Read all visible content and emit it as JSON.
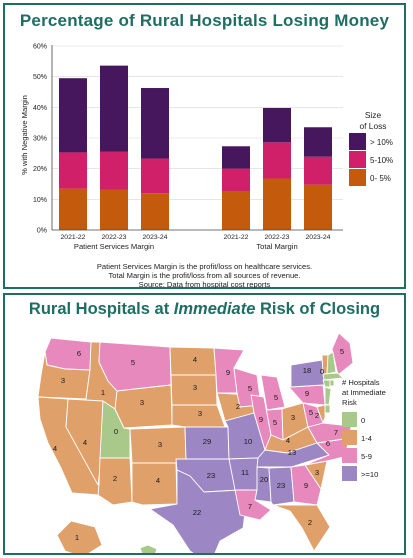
{
  "chart_title": "Percentage of Rural Hospitals Losing Money",
  "map_title": {
    "prefix": "Rural Hospitals at ",
    "emph": "Immediate",
    "suffix": " Risk of Closing"
  },
  "chart_data": [
    {
      "type": "bar",
      "stacked": true,
      "title": "Percentage of Rural Hospitals Losing Money",
      "ylabel": "% with Negative Margin",
      "ylim": [
        0,
        60
      ],
      "yticks": [
        "0%",
        "10%",
        "20%",
        "30%",
        "40%",
        "50%",
        "60%"
      ],
      "grid": true,
      "groups": [
        {
          "label": "Patient Services Margin",
          "categories": [
            "2021-22",
            "2022-23",
            "2023-24"
          ]
        },
        {
          "label": "Total Margin",
          "categories": [
            "2021-22",
            "2022-23",
            "2023-24"
          ]
        }
      ],
      "series": [
        {
          "name": "0- 5%",
          "color": "#c45a0c",
          "values": [
            13.5,
            13.2,
            12.0,
            12.5,
            16.8,
            14.8
          ]
        },
        {
          "name": "5-10%",
          "color": "#d0206a",
          "values": [
            11.8,
            12.4,
            11.3,
            7.5,
            11.8,
            9.1
          ]
        },
        {
          "name": "> 10%",
          "color": "#46175c",
          "values": [
            24.2,
            28.0,
            23.0,
            7.3,
            11.2,
            9.6
          ]
        }
      ],
      "legend": {
        "title": "Size of Loss",
        "position": "right",
        "order": [
          "> 10%",
          "5-10%",
          "0- 5%"
        ]
      },
      "notes": [
        "Patient Services Margin is the profit/loss on healthcare services.",
        "Total Margin is the profit/loss from all sources of revenue.",
        "Source: Data from hospital cost reports"
      ]
    },
    {
      "type": "map",
      "title": "Rural Hospitals at Immediate Risk of Closing",
      "legend": {
        "title": "# Hospitals at Immediate Risk",
        "bins": [
          {
            "label": "0",
            "color": "#a9c98a"
          },
          {
            "label": "1-4",
            "color": "#e0a06a"
          },
          {
            "label": "5-9",
            "color": "#e889be"
          },
          {
            "label": ">=10",
            "color": "#9c87c4"
          }
        ]
      },
      "state_values": [
        {
          "state": "WA",
          "value": 6
        },
        {
          "state": "OR",
          "value": 3
        },
        {
          "state": "CA",
          "value": 4
        },
        {
          "state": "ID",
          "value": 1
        },
        {
          "state": "NV",
          "value": 4
        },
        {
          "state": "UT",
          "value": 0
        },
        {
          "state": "AZ",
          "value": 2
        },
        {
          "state": "MT",
          "value": 5
        },
        {
          "state": "WY",
          "value": 3
        },
        {
          "state": "CO",
          "value": 3
        },
        {
          "state": "NM",
          "value": 4
        },
        {
          "state": "ND",
          "value": 4
        },
        {
          "state": "SD",
          "value": 3
        },
        {
          "state": "NE",
          "value": 3
        },
        {
          "state": "KS",
          "value": 29
        },
        {
          "state": "OK",
          "value": 23
        },
        {
          "state": "TX",
          "value": 22
        },
        {
          "state": "MN",
          "value": 9
        },
        {
          "state": "IA",
          "value": 2
        },
        {
          "state": "MO",
          "value": 10
        },
        {
          "state": "AR",
          "value": 11
        },
        {
          "state": "LA",
          "value": 7
        },
        {
          "state": "WI",
          "value": 5
        },
        {
          "state": "IL",
          "value": 9
        },
        {
          "state": "MI",
          "value": 5
        },
        {
          "state": "IN",
          "value": 5
        },
        {
          "state": "OH",
          "value": 3
        },
        {
          "state": "KY",
          "value": 4
        },
        {
          "state": "TN",
          "value": 13
        },
        {
          "state": "MS",
          "value": 20
        },
        {
          "state": "AL",
          "value": 23
        },
        {
          "state": "GA",
          "value": 9
        },
        {
          "state": "FL",
          "value": 2
        },
        {
          "state": "SC",
          "value": 3
        },
        {
          "state": "NC",
          "value": 6
        },
        {
          "state": "VA",
          "value": 7
        },
        {
          "state": "WV",
          "value": 5
        },
        {
          "state": "PA",
          "value": 9
        },
        {
          "state": "NY",
          "value": 18
        },
        {
          "state": "ME",
          "value": 5
        },
        {
          "state": "VT",
          "value": 1
        },
        {
          "state": "NH",
          "value": 0
        },
        {
          "state": "MA",
          "value": 0
        },
        {
          "state": "CT",
          "value": 0
        },
        {
          "state": "RI",
          "value": 0
        },
        {
          "state": "NJ",
          "value": 0
        },
        {
          "state": "DE",
          "value": 0
        },
        {
          "state": "MD",
          "value": 2
        },
        {
          "state": "AK",
          "value": 1
        },
        {
          "state": "HI",
          "value": 0
        }
      ]
    }
  ]
}
